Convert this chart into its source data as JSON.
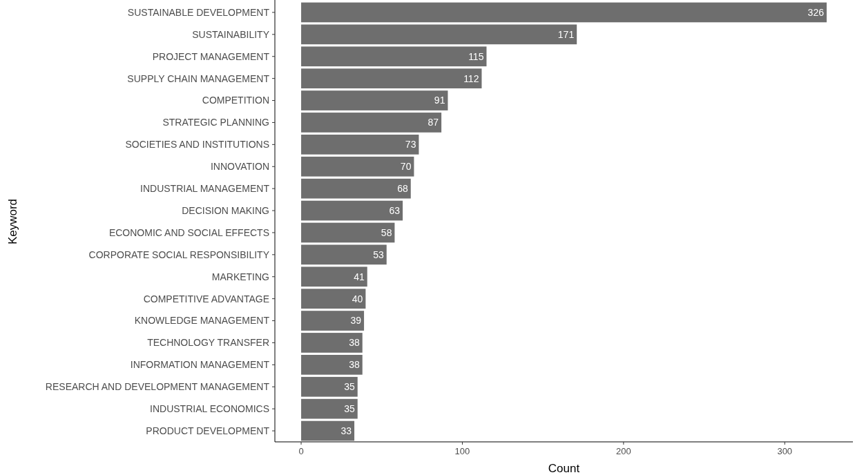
{
  "chart_data": {
    "type": "bar",
    "orientation": "horizontal",
    "xlabel": "Count",
    "ylabel": "Keyword",
    "categories": [
      "SUSTAINABLE DEVELOPMENT",
      "SUSTAINABILITY",
      "PROJECT MANAGEMENT",
      "SUPPLY CHAIN MANAGEMENT",
      "COMPETITION",
      "STRATEGIC PLANNING",
      "SOCIETIES AND INSTITUTIONS",
      "INNOVATION",
      "INDUSTRIAL MANAGEMENT",
      "DECISION MAKING",
      "ECONOMIC AND SOCIAL EFFECTS",
      "CORPORATE SOCIAL RESPONSIBILITY",
      "MARKETING",
      "COMPETITIVE ADVANTAGE",
      "KNOWLEDGE MANAGEMENT",
      "TECHNOLOGY TRANSFER",
      "INFORMATION MANAGEMENT",
      "RESEARCH AND DEVELOPMENT MANAGEMENT",
      "INDUSTRIAL ECONOMICS",
      "PRODUCT DEVELOPMENT"
    ],
    "values": [
      326,
      171,
      115,
      112,
      91,
      87,
      73,
      70,
      68,
      63,
      58,
      53,
      41,
      40,
      39,
      38,
      38,
      35,
      35,
      33
    ],
    "color": "#6e6e6e",
    "xlim": [
      -16.3,
      342.3
    ],
    "xticks": [
      0,
      100,
      200,
      300
    ],
    "grid": false,
    "data_labels": true
  }
}
